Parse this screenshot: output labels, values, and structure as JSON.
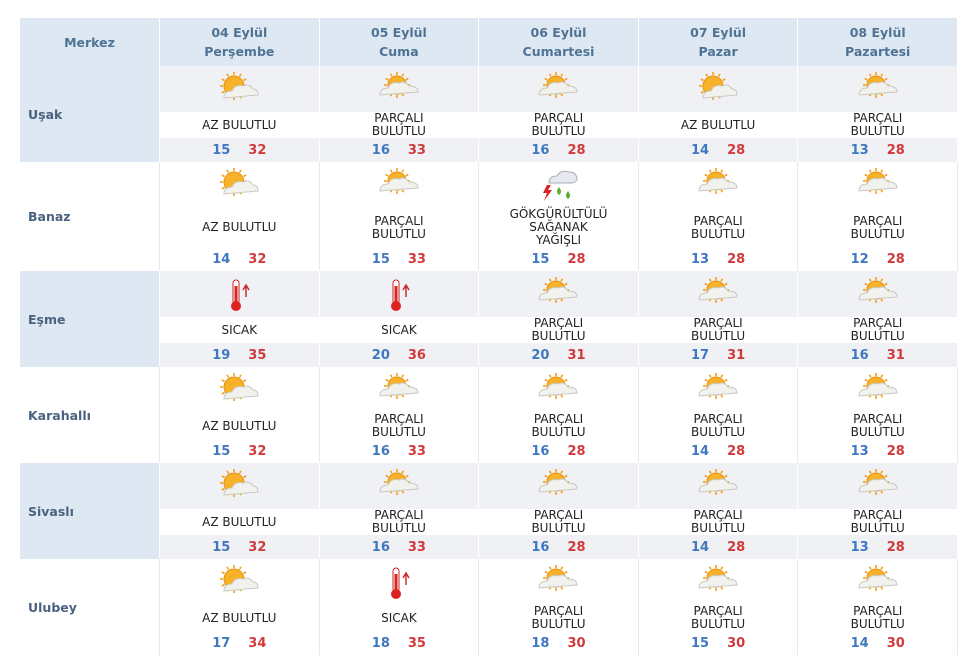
{
  "header": {
    "location": "Merkez",
    "days": [
      {
        "date": "04 Eylül",
        "day": "Perşembe"
      },
      {
        "date": "05 Eylül",
        "day": "Cuma"
      },
      {
        "date": "06 Eylül",
        "day": "Cumartesi"
      },
      {
        "date": "07 Eylül",
        "day": "Pazar"
      },
      {
        "date": "08 Eylül",
        "day": "Pazartesi"
      }
    ]
  },
  "rows": [
    {
      "name": "Uşak",
      "shaded": true,
      "cells": [
        {
          "icon": "sun",
          "condition": "AZ BULUTLU",
          "min": 15,
          "max": 32
        },
        {
          "icon": "cloud",
          "condition": "PARÇALI BULUTLU",
          "min": 16,
          "max": 33
        },
        {
          "icon": "cloud",
          "condition": "PARÇALI BULUTLU",
          "min": 16,
          "max": 28
        },
        {
          "icon": "sun",
          "condition": "AZ BULUTLU",
          "min": 14,
          "max": 28
        },
        {
          "icon": "cloud",
          "condition": "PARÇALI BULUTLU",
          "min": 13,
          "max": 28
        }
      ]
    },
    {
      "name": "Banaz",
      "shaded": false,
      "cells": [
        {
          "icon": "sun",
          "condition": "AZ BULUTLU",
          "min": 14,
          "max": 32
        },
        {
          "icon": "cloud",
          "condition": "PARÇALI BULUTLU",
          "min": 15,
          "max": 33
        },
        {
          "icon": "storm",
          "condition": "GÖKGÜRÜLTÜLÜ SAĞANAK YAĞIŞLI",
          "min": 15,
          "max": 28
        },
        {
          "icon": "cloud",
          "condition": "PARÇALI BULUTLU",
          "min": 13,
          "max": 28
        },
        {
          "icon": "cloud",
          "condition": "PARÇALI BULUTLU",
          "min": 12,
          "max": 28
        }
      ]
    },
    {
      "name": "Eşme",
      "shaded": true,
      "cells": [
        {
          "icon": "hot",
          "condition": "SICAK",
          "min": 19,
          "max": 35
        },
        {
          "icon": "hot",
          "condition": "SICAK",
          "min": 20,
          "max": 36
        },
        {
          "icon": "cloud",
          "condition": "PARÇALI BULUTLU",
          "min": 20,
          "max": 31
        },
        {
          "icon": "cloud",
          "condition": "PARÇALI BULUTLU",
          "min": 17,
          "max": 31
        },
        {
          "icon": "cloud",
          "condition": "PARÇALI BULUTLU",
          "min": 16,
          "max": 31
        }
      ]
    },
    {
      "name": "Karahallı",
      "shaded": false,
      "cells": [
        {
          "icon": "sun",
          "condition": "AZ BULUTLU",
          "min": 15,
          "max": 32
        },
        {
          "icon": "cloud",
          "condition": "PARÇALI BULUTLU",
          "min": 16,
          "max": 33
        },
        {
          "icon": "cloud",
          "condition": "PARÇALI BULUTLU",
          "min": 16,
          "max": 28
        },
        {
          "icon": "cloud",
          "condition": "PARÇALI BULUTLU",
          "min": 14,
          "max": 28
        },
        {
          "icon": "cloud",
          "condition": "PARÇALI BULUTLU",
          "min": 13,
          "max": 28
        }
      ]
    },
    {
      "name": "Sivaslı",
      "shaded": true,
      "cells": [
        {
          "icon": "sun",
          "condition": "AZ BULUTLU",
          "min": 15,
          "max": 32
        },
        {
          "icon": "cloud",
          "condition": "PARÇALI BULUTLU",
          "min": 16,
          "max": 33
        },
        {
          "icon": "cloud",
          "condition": "PARÇALI BULUTLU",
          "min": 16,
          "max": 28
        },
        {
          "icon": "cloud",
          "condition": "PARÇALI BULUTLU",
          "min": 14,
          "max": 28
        },
        {
          "icon": "cloud",
          "condition": "PARÇALI BULUTLU",
          "min": 13,
          "max": 28
        }
      ]
    },
    {
      "name": "Ulubey",
      "shaded": false,
      "cells": [
        {
          "icon": "sun",
          "condition": "AZ BULUTLU",
          "min": 17,
          "max": 34
        },
        {
          "icon": "hot",
          "condition": "SICAK",
          "min": 18,
          "max": 35
        },
        {
          "icon": "cloud",
          "condition": "PARÇALI BULUTLU",
          "min": 18,
          "max": 30
        },
        {
          "icon": "cloud",
          "condition": "PARÇALI BULUTLU",
          "min": 15,
          "max": 30
        },
        {
          "icon": "cloud",
          "condition": "PARÇALI BULUTLU",
          "min": 14,
          "max": 30
        }
      ]
    }
  ]
}
